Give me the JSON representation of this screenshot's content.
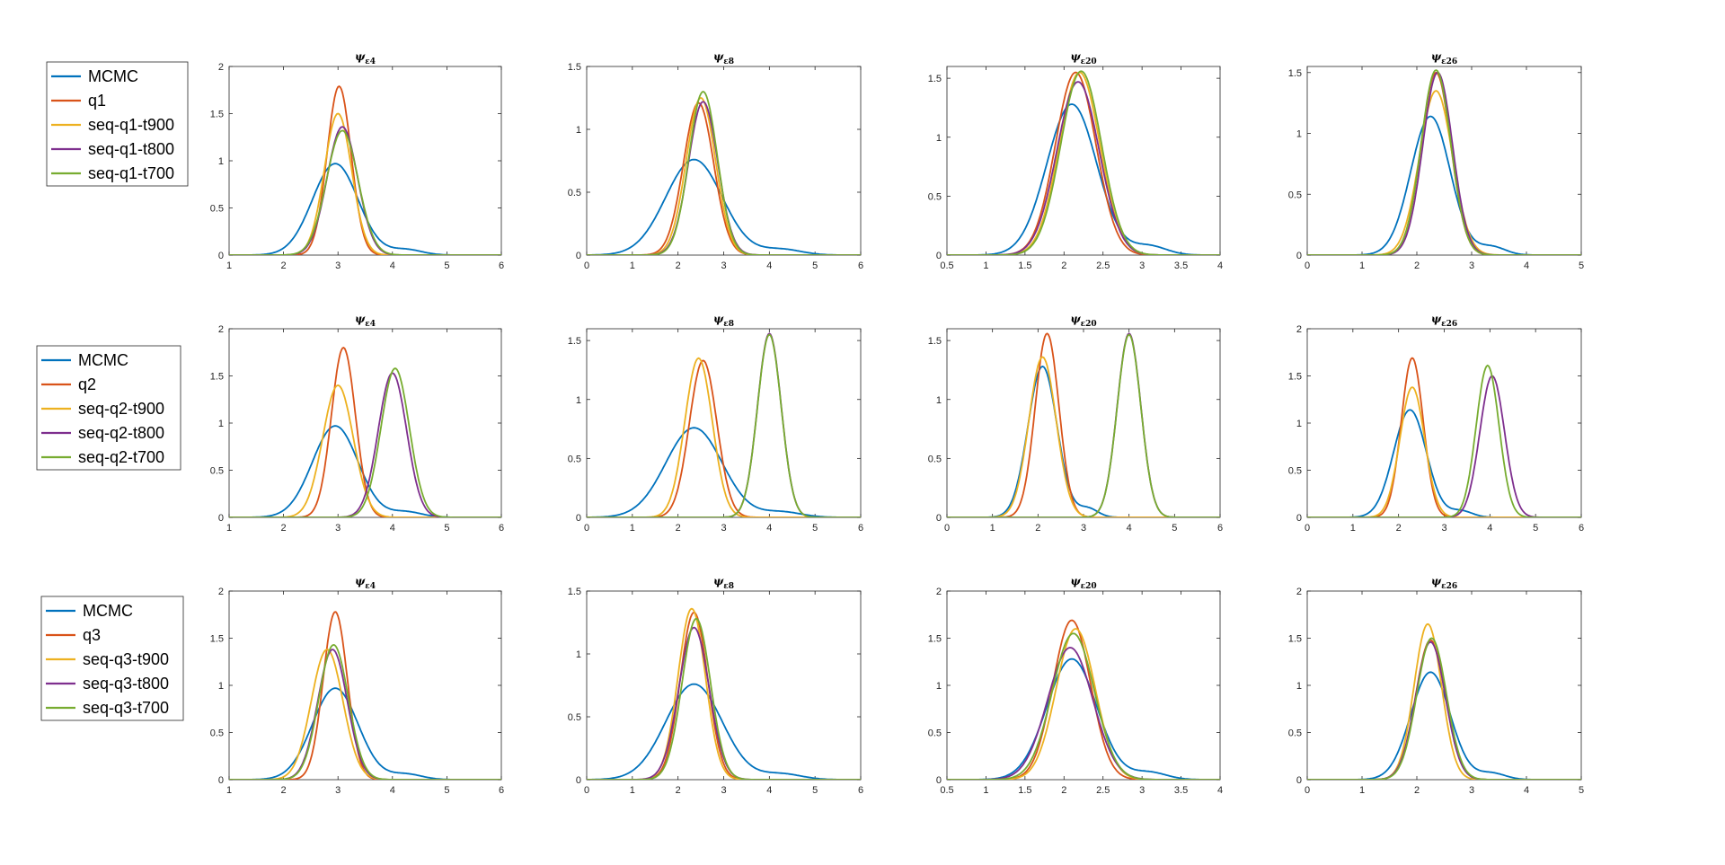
{
  "colors": {
    "MCMC": "#0072BD",
    "q": "#D95319",
    "t900": "#EDB120",
    "t800": "#7E2F8E",
    "t700": "#77AC30"
  },
  "titles": {
    "c4": {
      "psi": "ψ",
      "sub": "ε4"
    },
    "c8": {
      "psi": "ψ",
      "sub": "ε8"
    },
    "c20": {
      "psi": "ψ",
      "sub": "ε20"
    },
    "c26": {
      "psi": "ψ",
      "sub": "ε26"
    }
  },
  "legends": [
    [
      "MCMC",
      "q1",
      "seq-q1-t900",
      "seq-q1-t800",
      "seq-q1-t700"
    ],
    [
      "MCMC",
      "q2",
      "seq-q2-t900",
      "seq-q2-t800",
      "seq-q2-t700"
    ],
    [
      "MCMC",
      "q3",
      "seq-q3-t900",
      "seq-q3-t800",
      "seq-q3-t700"
    ]
  ],
  "chart_data": [
    {
      "type": "line",
      "row": 0,
      "col": 0,
      "title": "ψ ε4",
      "xlim": [
        1,
        6
      ],
      "xticks": [
        1,
        2,
        3,
        4,
        5,
        6
      ],
      "ylim": [
        0,
        2
      ],
      "yticks": [
        0,
        0.5,
        1,
        1.5,
        2
      ],
      "series": [
        {
          "name": "MCMC",
          "curves": [
            {
              "mu": 2.95,
              "sd": 0.42,
              "peak": 0.97
            }
          ],
          "tail": true
        },
        {
          "name": "q1",
          "curves": [
            {
              "mu": 3.02,
              "sd": 0.22,
              "peak": 1.79
            }
          ]
        },
        {
          "name": "seq-q1-t900",
          "curves": [
            {
              "mu": 3.0,
              "sd": 0.25,
              "peak": 1.5
            }
          ]
        },
        {
          "name": "seq-q1-t800",
          "curves": [
            {
              "mu": 3.08,
              "sd": 0.28,
              "peak": 1.36
            }
          ]
        },
        {
          "name": "seq-q1-t700",
          "curves": [
            {
              "mu": 3.08,
              "sd": 0.29,
              "peak": 1.32
            }
          ]
        }
      ]
    },
    {
      "type": "line",
      "row": 0,
      "col": 1,
      "title": "ψ ε8",
      "xlim": [
        0,
        6
      ],
      "xticks": [
        0,
        1,
        2,
        3,
        4,
        5,
        6
      ],
      "ylim": [
        0,
        1.5
      ],
      "yticks": [
        0,
        0.5,
        1,
        1.5
      ],
      "series": [
        {
          "name": "MCMC",
          "curves": [
            {
              "mu": 2.35,
              "sd": 0.62,
              "peak": 0.76
            }
          ],
          "tail": true
        },
        {
          "name": "q1",
          "curves": [
            {
              "mu": 2.45,
              "sd": 0.33,
              "peak": 1.21
            }
          ]
        },
        {
          "name": "seq-q1-t900",
          "curves": [
            {
              "mu": 2.5,
              "sd": 0.32,
              "peak": 1.25
            }
          ]
        },
        {
          "name": "seq-q1-t800",
          "curves": [
            {
              "mu": 2.55,
              "sd": 0.32,
              "peak": 1.22
            }
          ]
        },
        {
          "name": "seq-q1-t700",
          "curves": [
            {
              "mu": 2.55,
              "sd": 0.31,
              "peak": 1.3
            }
          ]
        }
      ]
    },
    {
      "type": "line",
      "row": 0,
      "col": 2,
      "title": "ψ ε20",
      "xlim": [
        0.5,
        4
      ],
      "xticks": [
        0.5,
        1,
        1.5,
        2,
        2.5,
        3,
        3.5,
        4
      ],
      "ylim": [
        0,
        1.6
      ],
      "yticks": [
        0,
        0.5,
        1,
        1.5
      ],
      "series": [
        {
          "name": "MCMC",
          "curves": [
            {
              "mu": 2.1,
              "sd": 0.32,
              "peak": 1.28
            }
          ],
          "tail": true
        },
        {
          "name": "q1",
          "curves": [
            {
              "mu": 2.15,
              "sd": 0.26,
              "peak": 1.55
            }
          ]
        },
        {
          "name": "seq-q1-t900",
          "curves": [
            {
              "mu": 2.2,
              "sd": 0.26,
              "peak": 1.55
            }
          ]
        },
        {
          "name": "seq-q1-t800",
          "curves": [
            {
              "mu": 2.18,
              "sd": 0.27,
              "peak": 1.47
            }
          ]
        },
        {
          "name": "seq-q1-t700",
          "curves": [
            {
              "mu": 2.22,
              "sd": 0.26,
              "peak": 1.56
            }
          ]
        }
      ]
    },
    {
      "type": "line",
      "row": 0,
      "col": 3,
      "title": "ψ ε26",
      "xlim": [
        0,
        5
      ],
      "xticks": [
        0,
        1,
        2,
        3,
        4,
        5
      ],
      "ylim": [
        0,
        1.55
      ],
      "yticks": [
        0,
        0.5,
        1,
        1.5
      ],
      "series": [
        {
          "name": "MCMC",
          "curves": [
            {
              "mu": 2.25,
              "sd": 0.36,
              "peak": 1.14
            }
          ],
          "tail": true
        },
        {
          "name": "q1",
          "curves": [
            {
              "mu": 2.35,
              "sd": 0.27,
              "peak": 1.5
            }
          ]
        },
        {
          "name": "seq-q1-t900",
          "curves": [
            {
              "mu": 2.35,
              "sd": 0.3,
              "peak": 1.35
            }
          ]
        },
        {
          "name": "seq-q1-t800",
          "curves": [
            {
              "mu": 2.38,
              "sd": 0.27,
              "peak": 1.5
            }
          ]
        },
        {
          "name": "seq-q1-t700",
          "curves": [
            {
              "mu": 2.35,
              "sd": 0.27,
              "peak": 1.52
            }
          ]
        }
      ]
    },
    {
      "type": "line",
      "row": 1,
      "col": 0,
      "title": "ψ ε4",
      "xlim": [
        1,
        6
      ],
      "xticks": [
        1,
        2,
        3,
        4,
        5,
        6
      ],
      "ylim": [
        0,
        2
      ],
      "yticks": [
        0,
        0.5,
        1,
        1.5,
        2
      ],
      "series": [
        {
          "name": "MCMC",
          "curves": [
            {
              "mu": 2.95,
              "sd": 0.42,
              "peak": 0.97
            }
          ],
          "tail": true
        },
        {
          "name": "q2",
          "curves": [
            {
              "mu": 3.1,
              "sd": 0.22,
              "peak": 1.8
            }
          ]
        },
        {
          "name": "seq-q2-t900",
          "curves": [
            {
              "mu": 3.0,
              "sd": 0.28,
              "peak": 1.4
            }
          ]
        },
        {
          "name": "seq-q2-t800",
          "curves": [
            {
              "mu": 4.0,
              "sd": 0.26,
              "peak": 1.53
            }
          ]
        },
        {
          "name": "seq-q2-t700",
          "curves": [
            {
              "mu": 4.05,
              "sd": 0.26,
              "peak": 1.58
            }
          ]
        }
      ]
    },
    {
      "type": "line",
      "row": 1,
      "col": 1,
      "title": "ψ ε8",
      "xlim": [
        0,
        6
      ],
      "xticks": [
        0,
        1,
        2,
        3,
        4,
        5,
        6
      ],
      "ylim": [
        0,
        1.6
      ],
      "yticks": [
        0,
        0.5,
        1,
        1.5
      ],
      "series": [
        {
          "name": "MCMC",
          "curves": [
            {
              "mu": 2.35,
              "sd": 0.62,
              "peak": 0.76
            }
          ],
          "tail": true
        },
        {
          "name": "q2",
          "curves": [
            {
              "mu": 2.55,
              "sd": 0.3,
              "peak": 1.33
            }
          ]
        },
        {
          "name": "seq-q2-t900",
          "curves": [
            {
              "mu": 2.45,
              "sd": 0.3,
              "peak": 1.35
            }
          ]
        },
        {
          "name": "seq-q2-t800",
          "curves": [
            {
              "mu": 4.0,
              "sd": 0.26,
              "peak": 1.56
            }
          ]
        },
        {
          "name": "seq-q2-t700",
          "curves": [
            {
              "mu": 4.0,
              "sd": 0.26,
              "peak": 1.55
            }
          ]
        }
      ]
    },
    {
      "type": "line",
      "row": 1,
      "col": 2,
      "title": "ψ ε20",
      "xlim": [
        0,
        6
      ],
      "xticks": [
        0,
        1,
        2,
        3,
        4,
        5,
        6
      ],
      "ylim": [
        0,
        1.6
      ],
      "yticks": [
        0,
        0.5,
        1,
        1.5
      ],
      "series": [
        {
          "name": "MCMC",
          "curves": [
            {
              "mu": 2.1,
              "sd": 0.32,
              "peak": 1.28
            }
          ],
          "tail": true
        },
        {
          "name": "q2",
          "curves": [
            {
              "mu": 2.2,
              "sd": 0.26,
              "peak": 1.56
            }
          ]
        },
        {
          "name": "seq-q2-t900",
          "curves": [
            {
              "mu": 2.1,
              "sd": 0.3,
              "peak": 1.36
            }
          ]
        },
        {
          "name": "seq-q2-t800",
          "curves": [
            {
              "mu": 4.0,
              "sd": 0.26,
              "peak": 1.56
            }
          ]
        },
        {
          "name": "seq-q2-t700",
          "curves": [
            {
              "mu": 4.0,
              "sd": 0.26,
              "peak": 1.55
            }
          ]
        }
      ]
    },
    {
      "type": "line",
      "row": 1,
      "col": 3,
      "title": "ψ ε26",
      "xlim": [
        0,
        6
      ],
      "xticks": [
        0,
        1,
        2,
        3,
        4,
        5,
        6
      ],
      "ylim": [
        0,
        2
      ],
      "yticks": [
        0,
        0.5,
        1,
        1.5,
        2
      ],
      "series": [
        {
          "name": "MCMC",
          "curves": [
            {
              "mu": 2.25,
              "sd": 0.36,
              "peak": 1.14
            }
          ],
          "tail": true
        },
        {
          "name": "q2",
          "curves": [
            {
              "mu": 2.3,
              "sd": 0.24,
              "peak": 1.69
            }
          ]
        },
        {
          "name": "seq-q2-t900",
          "curves": [
            {
              "mu": 2.3,
              "sd": 0.27,
              "peak": 1.38
            }
          ]
        },
        {
          "name": "seq-q2-t800",
          "curves": [
            {
              "mu": 4.05,
              "sd": 0.27,
              "peak": 1.5
            }
          ]
        },
        {
          "name": "seq-q2-t700",
          "curves": [
            {
              "mu": 3.95,
              "sd": 0.25,
              "peak": 1.61
            }
          ]
        }
      ]
    },
    {
      "type": "line",
      "row": 2,
      "col": 0,
      "title": "ψ ε4",
      "xlim": [
        1,
        6
      ],
      "xticks": [
        1,
        2,
        3,
        4,
        5,
        6
      ],
      "ylim": [
        0,
        2
      ],
      "yticks": [
        0,
        0.5,
        1,
        1.5,
        2
      ],
      "series": [
        {
          "name": "MCMC",
          "curves": [
            {
              "mu": 2.95,
              "sd": 0.42,
              "peak": 0.97
            }
          ],
          "tail": true
        },
        {
          "name": "q3",
          "curves": [
            {
              "mu": 2.95,
              "sd": 0.22,
              "peak": 1.78
            }
          ]
        },
        {
          "name": "seq-q3-t900",
          "curves": [
            {
              "mu": 2.8,
              "sd": 0.29,
              "peak": 1.38
            }
          ]
        },
        {
          "name": "seq-q3-t800",
          "curves": [
            {
              "mu": 2.9,
              "sd": 0.27,
              "peak": 1.38
            }
          ]
        },
        {
          "name": "seq-q3-t700",
          "curves": [
            {
              "mu": 2.92,
              "sd": 0.27,
              "peak": 1.43
            }
          ]
        }
      ]
    },
    {
      "type": "line",
      "row": 2,
      "col": 1,
      "title": "ψ ε8",
      "xlim": [
        0,
        6
      ],
      "xticks": [
        0,
        1,
        2,
        3,
        4,
        5,
        6
      ],
      "ylim": [
        0,
        1.5
      ],
      "yticks": [
        0,
        0.5,
        1,
        1.5
      ],
      "series": [
        {
          "name": "MCMC",
          "curves": [
            {
              "mu": 2.35,
              "sd": 0.62,
              "peak": 0.76
            }
          ],
          "tail": true
        },
        {
          "name": "q3",
          "curves": [
            {
              "mu": 2.35,
              "sd": 0.3,
              "peak": 1.33
            }
          ]
        },
        {
          "name": "seq-q3-t900",
          "curves": [
            {
              "mu": 2.3,
              "sd": 0.3,
              "peak": 1.36
            }
          ]
        },
        {
          "name": "seq-q3-t800",
          "curves": [
            {
              "mu": 2.35,
              "sd": 0.33,
              "peak": 1.21
            }
          ]
        },
        {
          "name": "seq-q3-t700",
          "curves": [
            {
              "mu": 2.4,
              "sd": 0.31,
              "peak": 1.28
            }
          ]
        }
      ]
    },
    {
      "type": "line",
      "row": 2,
      "col": 2,
      "title": "ψ ε20",
      "xlim": [
        0.5,
        4
      ],
      "xticks": [
        0.5,
        1,
        1.5,
        2,
        2.5,
        3,
        3.5,
        4
      ],
      "ylim": [
        0,
        2
      ],
      "yticks": [
        0,
        0.5,
        1,
        1.5,
        2
      ],
      "series": [
        {
          "name": "MCMC",
          "curves": [
            {
              "mu": 2.1,
              "sd": 0.32,
              "peak": 1.28
            }
          ],
          "tail": true
        },
        {
          "name": "q3",
          "curves": [
            {
              "mu": 2.1,
              "sd": 0.24,
              "peak": 1.69
            }
          ]
        },
        {
          "name": "seq-q3-t900",
          "curves": [
            {
              "mu": 2.15,
              "sd": 0.25,
              "peak": 1.6
            }
          ]
        },
        {
          "name": "seq-q3-t800",
          "curves": [
            {
              "mu": 2.08,
              "sd": 0.29,
              "peak": 1.4
            }
          ]
        },
        {
          "name": "seq-q3-t700",
          "curves": [
            {
              "mu": 2.12,
              "sd": 0.27,
              "peak": 1.55
            }
          ]
        }
      ]
    },
    {
      "type": "line",
      "row": 2,
      "col": 3,
      "title": "ψ ε26",
      "xlim": [
        0,
        5
      ],
      "xticks": [
        0,
        1,
        2,
        3,
        4,
        5
      ],
      "ylim": [
        0,
        2
      ],
      "yticks": [
        0,
        0.5,
        1,
        1.5,
        2
      ],
      "series": [
        {
          "name": "MCMC",
          "curves": [
            {
              "mu": 2.25,
              "sd": 0.36,
              "peak": 1.14
            }
          ],
          "tail": true
        },
        {
          "name": "q3",
          "curves": [
            {
              "mu": 2.25,
              "sd": 0.27,
              "peak": 1.48
            }
          ]
        },
        {
          "name": "seq-q3-t900",
          "curves": [
            {
              "mu": 2.2,
              "sd": 0.25,
              "peak": 1.65
            }
          ]
        },
        {
          "name": "seq-q3-t800",
          "curves": [
            {
              "mu": 2.25,
              "sd": 0.27,
              "peak": 1.46
            }
          ]
        },
        {
          "name": "seq-q3-t700",
          "curves": [
            {
              "mu": 2.27,
              "sd": 0.27,
              "peak": 1.5
            }
          ]
        }
      ]
    }
  ]
}
